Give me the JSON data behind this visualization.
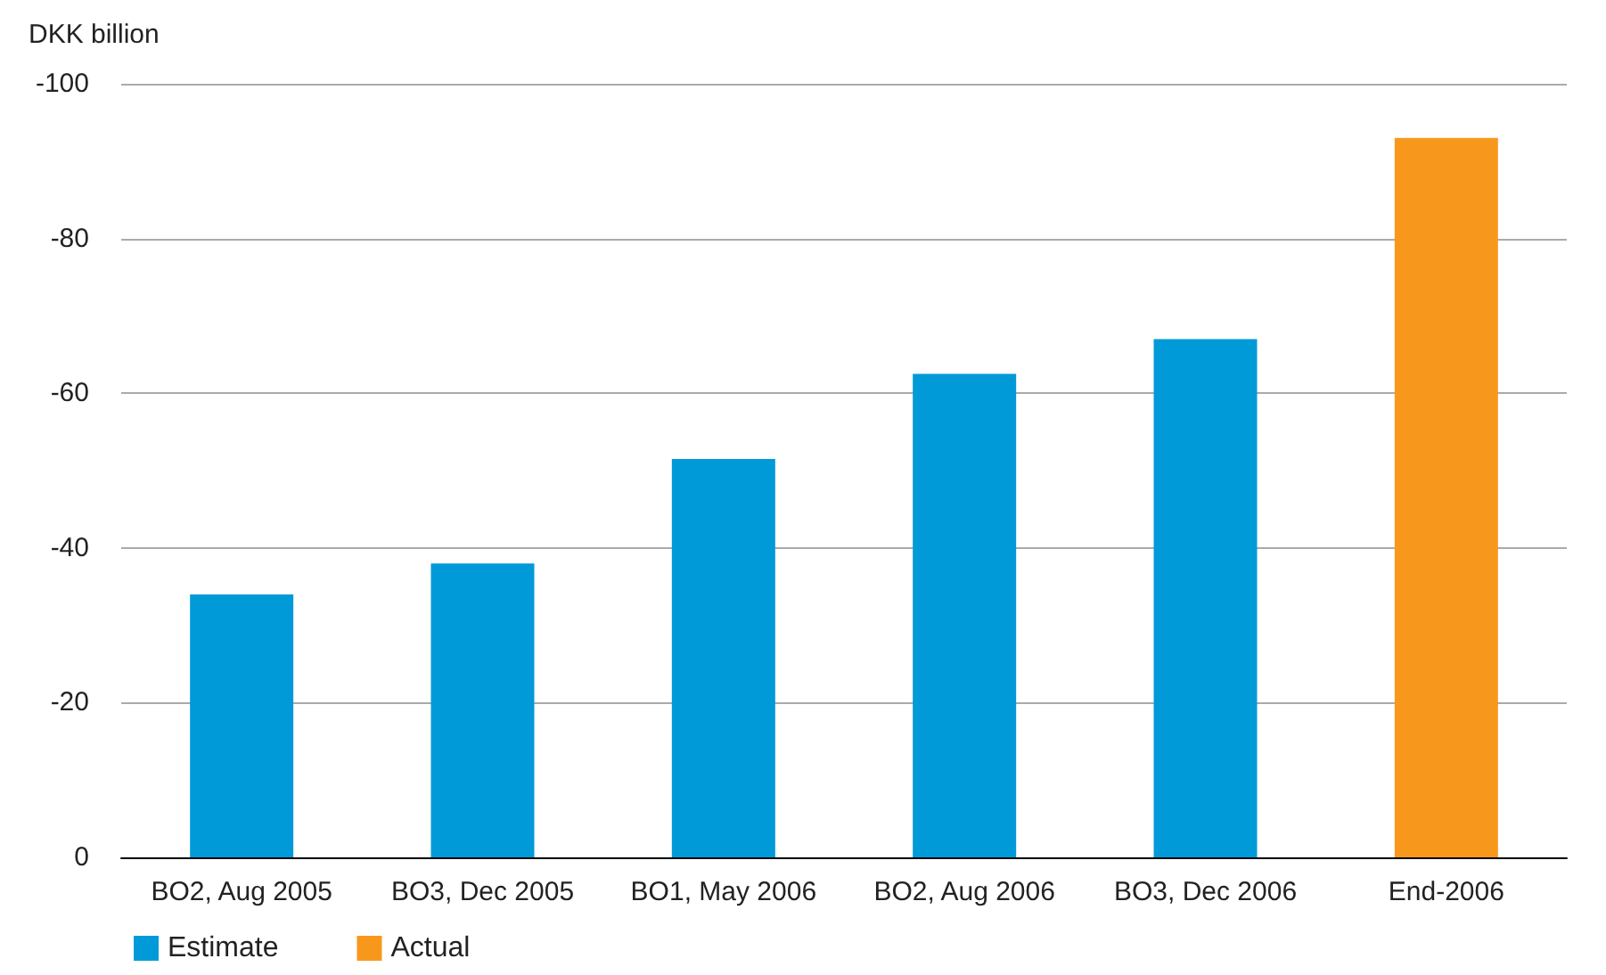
{
  "chart_data": {
    "type": "bar",
    "ylabel": "DKK billion",
    "categories": [
      "BO2, Aug 2005",
      "BO3, Dec 2005",
      "BO1, May 2006",
      "BO2, Aug 2006",
      "BO3, Dec 2006",
      "End-2006"
    ],
    "series": [
      {
        "name": "Estimate",
        "color": "#009ad8",
        "values": [
          -34,
          -38,
          -51.5,
          -62.5,
          -67,
          null
        ]
      },
      {
        "name": "Actual",
        "color": "#f7981d",
        "values": [
          null,
          null,
          null,
          null,
          null,
          -93
        ]
      }
    ],
    "ylim": [
      0,
      -100
    ],
    "yticks": [
      0,
      -20,
      -40,
      -60,
      -80,
      -100
    ],
    "grid": "y",
    "legend": "bottom left"
  }
}
